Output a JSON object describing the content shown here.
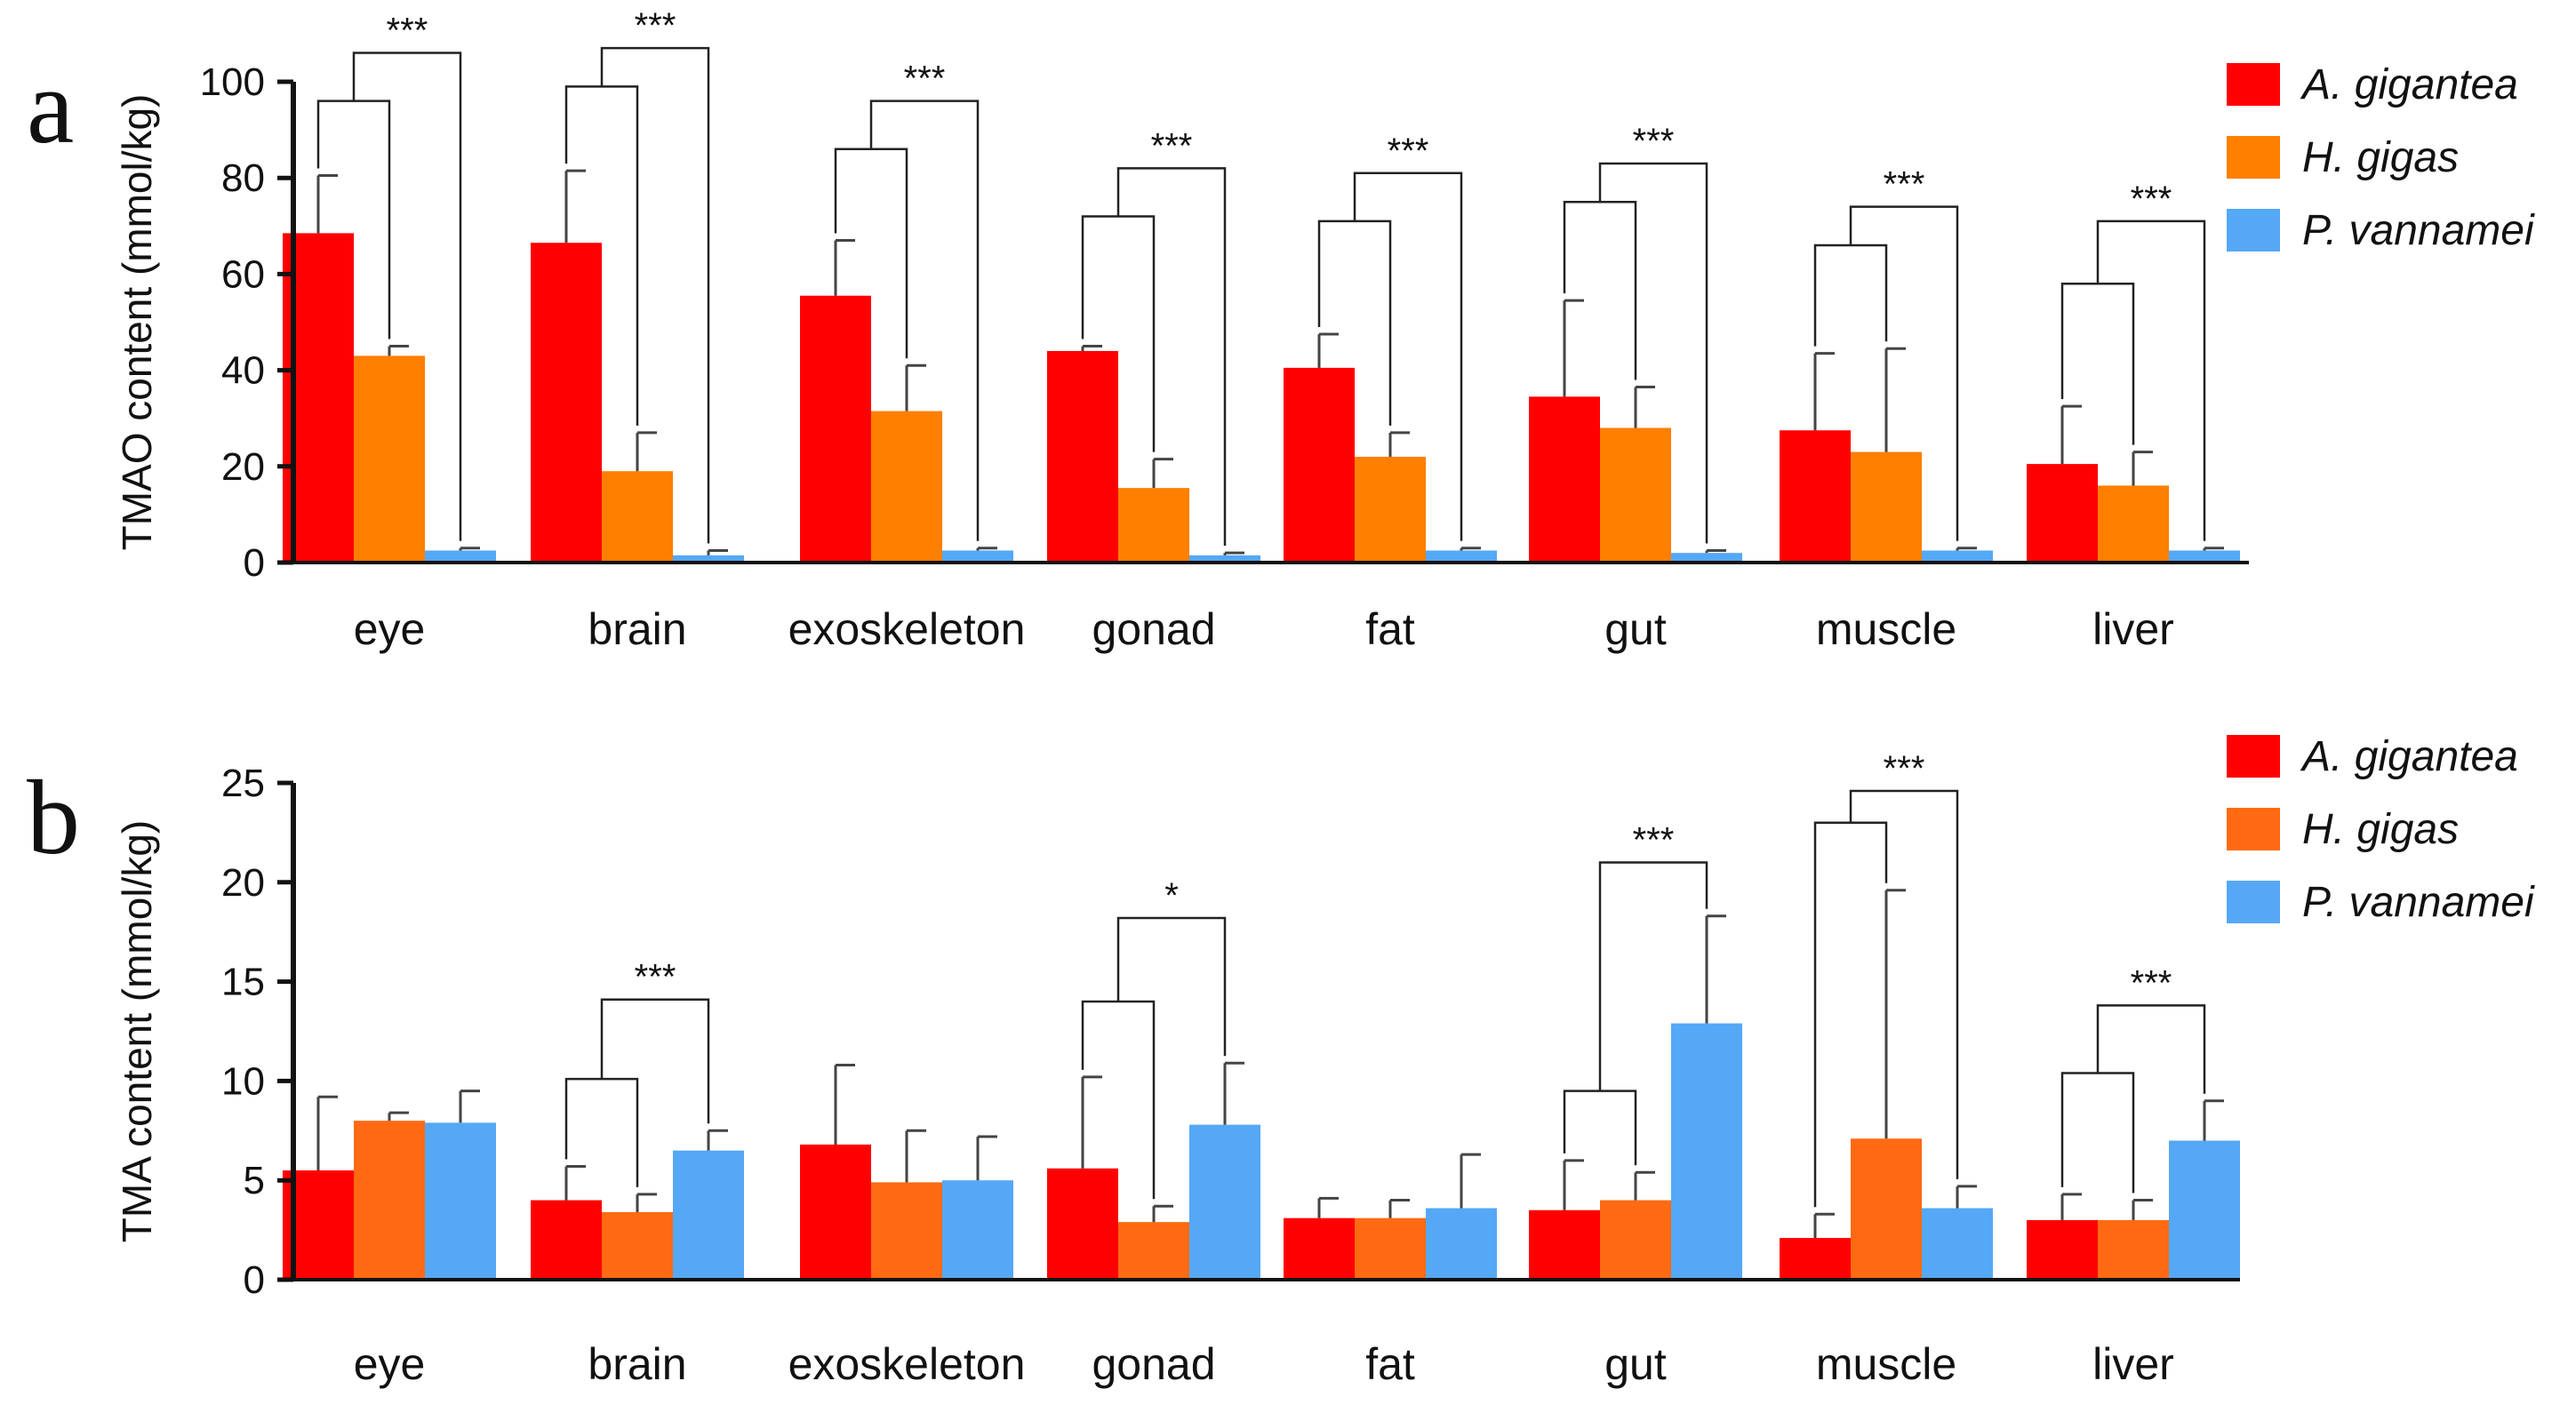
{
  "chart_data": [
    {
      "panel": "a",
      "type": "bar",
      "ylabel": "TMAO content (mmol/kg)",
      "ylim": [
        0,
        100
      ],
      "yticks": [
        "0",
        "20",
        "40",
        "60",
        "80",
        "100"
      ],
      "categories": [
        "eye",
        "brain",
        "exoskeleton",
        "gonad",
        "fat",
        "gut",
        "muscle",
        "liver"
      ],
      "series": [
        {
          "name": "A. gigantea",
          "color": "#ff0000",
          "values": [
            68.5,
            66.5,
            55.5,
            44,
            40.5,
            34.5,
            27.5,
            20.5
          ],
          "errors": [
            12,
            15,
            11.5,
            1,
            7,
            20,
            16,
            12
          ]
        },
        {
          "name": "H. gigas",
          "color": "#ff7f00",
          "values": [
            43,
            19,
            31.5,
            15.5,
            22,
            28,
            23,
            16
          ],
          "errors": [
            2,
            8,
            9.5,
            6,
            5,
            8.5,
            21.5,
            7
          ]
        },
        {
          "name": "P. vannamei",
          "color": "#55a8f5",
          "values": [
            2.5,
            1.5,
            2.5,
            1.5,
            2.5,
            2,
            2.5,
            2.5
          ],
          "errors": [
            0.5,
            1,
            0.5,
            0.5,
            0.5,
            0.5,
            0.5,
            0.5
          ]
        }
      ],
      "significance": [
        "***",
        "***",
        "***",
        "***",
        "***",
        "***",
        "***",
        "***"
      ],
      "brackets": [
        {
          "inner": 96,
          "outer": 106,
          "sig": "***"
        },
        {
          "inner": 99,
          "outer": 107,
          "sig": "***"
        },
        {
          "inner": 86,
          "outer": 96,
          "sig": "***"
        },
        {
          "inner": 72,
          "outer": 82,
          "sig": "***"
        },
        {
          "inner": 71,
          "outer": 81,
          "sig": "***"
        },
        {
          "inner": 75,
          "outer": 83,
          "sig": "***"
        },
        {
          "inner": 66,
          "outer": 74,
          "sig": "***"
        },
        {
          "inner": 58,
          "outer": 71,
          "sig": "***"
        }
      ]
    },
    {
      "panel": "b",
      "type": "bar",
      "ylabel": "TMA content (mmol/kg)",
      "ylim": [
        0,
        25
      ],
      "yticks": [
        "0",
        "5",
        "10",
        "15",
        "20",
        "25"
      ],
      "categories": [
        "eye",
        "brain",
        "exoskeleton",
        "gonad",
        "fat",
        "gut",
        "muscle",
        "liver"
      ],
      "series": [
        {
          "name": "A. gigantea",
          "color": "#ff0000",
          "values": [
            5.5,
            4,
            6.8,
            5.6,
            3.1,
            3.5,
            2.1,
            3.0
          ],
          "errors": [
            3.7,
            1.7,
            4,
            4.6,
            1,
            2.5,
            1.2,
            1.3
          ]
        },
        {
          "name": "H. gigas",
          "color": "#ff6a12",
          "values": [
            8,
            3.4,
            4.9,
            2.9,
            3.1,
            4,
            7.1,
            3.0
          ],
          "errors": [
            0.4,
            0.9,
            2.6,
            0.8,
            0.9,
            1.4,
            12.5,
            1
          ]
        },
        {
          "name": "P. vannamei",
          "color": "#55a8f5",
          "values": [
            7.9,
            6.5,
            5.0,
            7.8,
            3.6,
            12.9,
            3.6,
            7.0
          ],
          "errors": [
            1.6,
            1,
            2.2,
            3.1,
            2.7,
            5.4,
            1.1,
            2
          ]
        }
      ],
      "significance": [
        "",
        "***",
        "",
        "*",
        "",
        "***",
        "***",
        "***"
      ],
      "brackets": [
        null,
        {
          "inner": 10.1,
          "outer": 14.1,
          "sig": "***"
        },
        null,
        {
          "inner": 14,
          "outer": 18.2,
          "sig": "*"
        },
        null,
        {
          "inner": 9.5,
          "outer": 21,
          "sig": "***"
        },
        {
          "inner": 23,
          "outer": 24.6,
          "sig": "***"
        },
        {
          "inner": 10.4,
          "outer": 13.8,
          "sig": "***"
        }
      ]
    }
  ]
}
